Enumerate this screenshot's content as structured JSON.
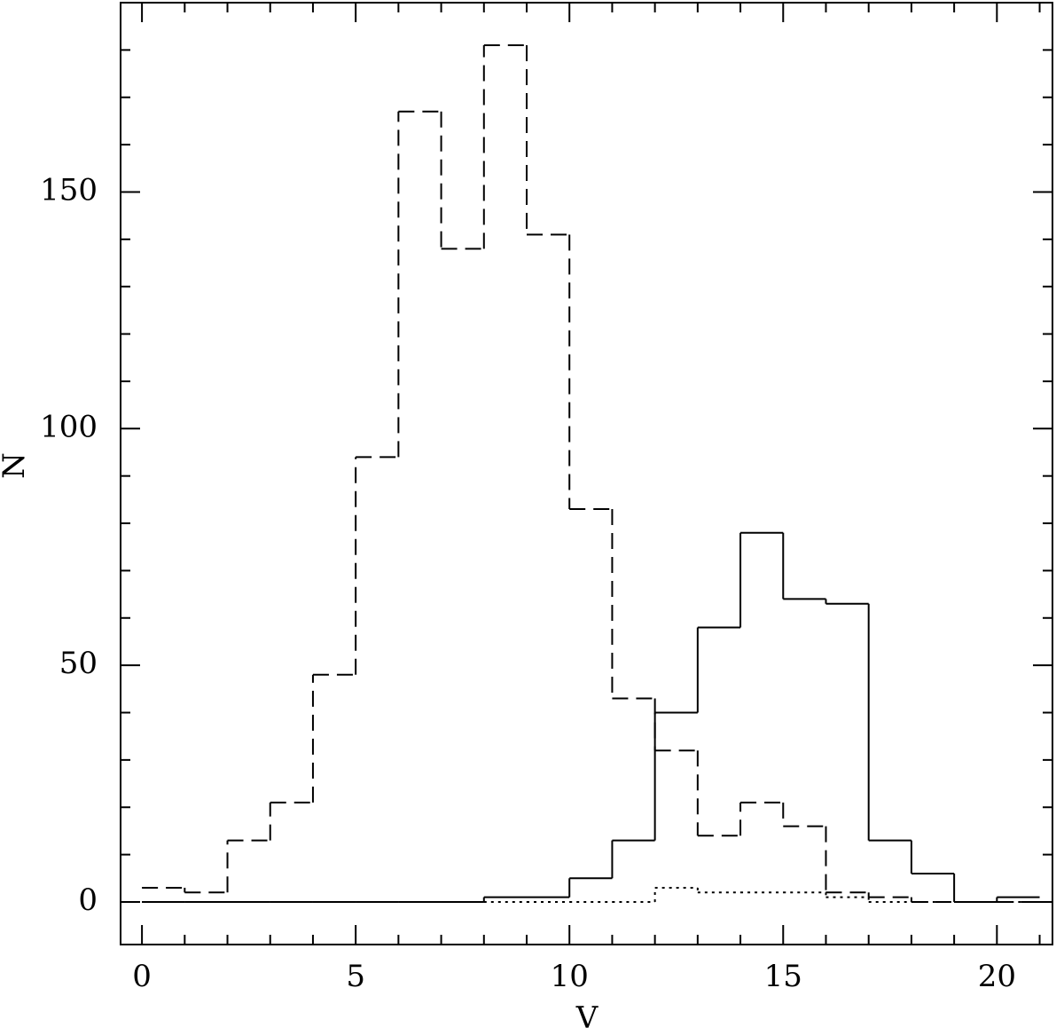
{
  "chart_data": {
    "type": "histogram",
    "x_label": "V",
    "y_label": "N",
    "bins": [
      0,
      1,
      2,
      3,
      4,
      5,
      6,
      7,
      8,
      9,
      10,
      11,
      12,
      13,
      14,
      15,
      16,
      17,
      18,
      19,
      20,
      21
    ],
    "series": [
      {
        "color": "#000000",
        "dash": "dashed",
        "values": [
          3,
          2,
          13,
          21,
          48,
          94,
          167,
          138,
          181,
          141,
          83,
          43,
          32,
          14,
          21,
          16,
          2,
          1,
          0,
          0,
          0
        ]
      },
      {
        "color": "#000000",
        "dash": "solid",
        "values": [
          0,
          0,
          0,
          0,
          0,
          0,
          0,
          0,
          1,
          1,
          5,
          13,
          40,
          58,
          78,
          64,
          63,
          13,
          6,
          0,
          1
        ]
      },
      {
        "color": "#000000",
        "dash": "dotted",
        "values": [
          0,
          0,
          0,
          0,
          0,
          0,
          0,
          0,
          0,
          0,
          0,
          0,
          3,
          2,
          2,
          2,
          1,
          0,
          0,
          0,
          0
        ]
      }
    ],
    "xlim": [
      -0.5,
      21.3
    ],
    "ylim": [
      -9,
      190
    ],
    "xticks": [
      0,
      5,
      10,
      15,
      20
    ],
    "yticks": [
      0,
      50,
      100,
      150
    ],
    "x_minor_ticks": [
      1,
      2,
      3,
      4,
      6,
      7,
      8,
      9,
      11,
      12,
      13,
      14,
      16,
      17,
      18,
      19,
      21
    ],
    "y_minor_ticks": [
      10,
      20,
      30,
      40,
      60,
      70,
      80,
      90,
      110,
      120,
      130,
      140,
      160,
      170,
      180
    ]
  }
}
